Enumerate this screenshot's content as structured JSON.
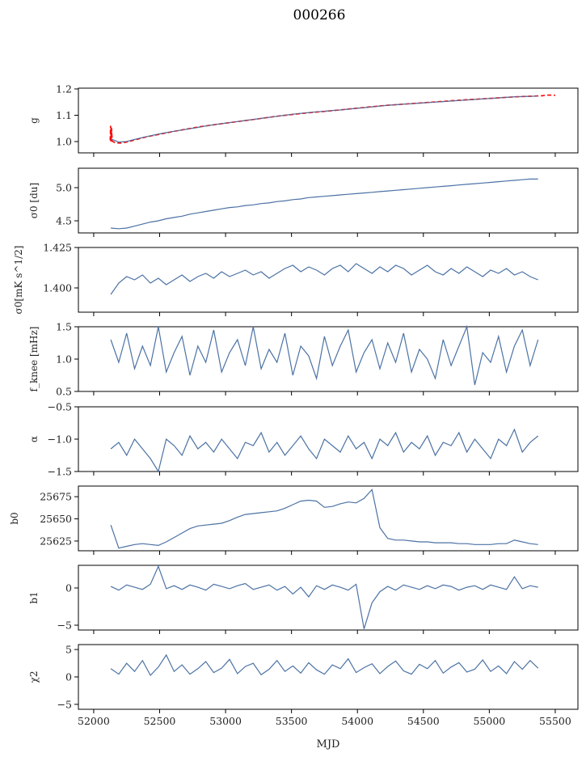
{
  "chart_data": {
    "type": "line",
    "title": "000266",
    "xlabel": "MJD",
    "xlim": [
      51884,
      55672
    ],
    "xticks": [
      "52000",
      "52500",
      "53000",
      "53500",
      "54000",
      "54500",
      "55000",
      "55500"
    ],
    "xtick_values": [
      52000,
      52500,
      53000,
      53500,
      54000,
      54500,
      55000,
      55500
    ],
    "line_color": "#4c72a4",
    "overlay_color": "#ff0000",
    "x": [
      52130,
      52190,
      52250,
      52310,
      52370,
      52430,
      52490,
      52550,
      52610,
      52670,
      52730,
      52790,
      52850,
      52910,
      52970,
      53030,
      53090,
      53150,
      53210,
      53270,
      53330,
      53390,
      53450,
      53510,
      53570,
      53630,
      53690,
      53750,
      53810,
      53870,
      53930,
      53990,
      54050,
      54110,
      54170,
      54230,
      54290,
      54350,
      54410,
      54470,
      54530,
      54590,
      54650,
      54710,
      54770,
      54830,
      54890,
      54950,
      55010,
      55070,
      55130,
      55190,
      55250,
      55310,
      55370
    ],
    "panels": [
      {
        "ylabel": "g",
        "ylim": [
          0.957,
          1.203
        ],
        "yticks": [
          "1.0",
          "1.1",
          "1.2"
        ],
        "ytick_values": [
          1.0,
          1.1,
          1.2
        ],
        "values": [
          1.01,
          0.998,
          1.0,
          1.008,
          1.015,
          1.022,
          1.028,
          1.034,
          1.039,
          1.044,
          1.049,
          1.054,
          1.059,
          1.064,
          1.068,
          1.072,
          1.076,
          1.08,
          1.084,
          1.088,
          1.092,
          1.096,
          1.1,
          1.104,
          1.107,
          1.11,
          1.113,
          1.115,
          1.118,
          1.12,
          1.123,
          1.126,
          1.129,
          1.132,
          1.135,
          1.138,
          1.14,
          1.142,
          1.144,
          1.146,
          1.148,
          1.15,
          1.152,
          1.154,
          1.156,
          1.158,
          1.16,
          1.162,
          1.164,
          1.166,
          1.168,
          1.17,
          1.171,
          1.172,
          1.173
        ],
        "overlay": {
          "x": [
            52125,
            52128,
            52130,
            52132,
            52134,
            52136,
            52140,
            52160,
            52200,
            52250,
            52400,
            52600,
            52800,
            53000,
            53200,
            53400,
            53600,
            53800,
            54000,
            54200,
            54400,
            54600,
            54800,
            55000,
            55200,
            55400,
            55450,
            55500
          ],
          "values": [
            1.005,
            1.06,
            1.0,
            1.055,
            1.0,
            1.05,
            1.002,
            0.996,
            0.994,
            0.998,
            1.018,
            1.038,
            1.056,
            1.07,
            1.083,
            1.097,
            1.108,
            1.117,
            1.127,
            1.137,
            1.144,
            1.151,
            1.158,
            1.164,
            1.17,
            1.174,
            1.177,
            1.176
          ]
        }
      },
      {
        "ylabel": "σ0 [du]",
        "ylim": [
          4.317,
          5.293
        ],
        "yticks": [
          "4.5",
          "5.0"
        ],
        "ytick_values": [
          4.5,
          5.0
        ],
        "values": [
          4.39,
          4.38,
          4.39,
          4.42,
          4.45,
          4.48,
          4.5,
          4.53,
          4.55,
          4.57,
          4.6,
          4.62,
          4.64,
          4.66,
          4.68,
          4.7,
          4.71,
          4.73,
          4.74,
          4.76,
          4.77,
          4.79,
          4.8,
          4.82,
          4.83,
          4.85,
          4.86,
          4.87,
          4.88,
          4.89,
          4.9,
          4.91,
          4.92,
          4.93,
          4.94,
          4.95,
          4.96,
          4.97,
          4.98,
          4.99,
          5.0,
          5.01,
          5.02,
          5.03,
          5.04,
          5.05,
          5.06,
          5.07,
          5.08,
          5.09,
          5.1,
          5.11,
          5.12,
          5.13,
          5.13
        ]
      },
      {
        "ylabel": "σ0[mK s^1/2]",
        "ylim": [
          1.385,
          1.425
        ],
        "yticks": [
          "1.400",
          "1.425"
        ],
        "ytick_values": [
          1.4,
          1.425
        ],
        "values": [
          1.396,
          1.403,
          1.407,
          1.405,
          1.408,
          1.403,
          1.406,
          1.402,
          1.405,
          1.408,
          1.404,
          1.407,
          1.409,
          1.406,
          1.41,
          1.407,
          1.409,
          1.411,
          1.408,
          1.41,
          1.406,
          1.409,
          1.412,
          1.414,
          1.41,
          1.413,
          1.411,
          1.408,
          1.412,
          1.414,
          1.41,
          1.415,
          1.412,
          1.409,
          1.413,
          1.41,
          1.414,
          1.412,
          1.408,
          1.411,
          1.414,
          1.41,
          1.408,
          1.412,
          1.409,
          1.413,
          1.41,
          1.407,
          1.411,
          1.409,
          1.412,
          1.408,
          1.41,
          1.407,
          1.405
        ]
      },
      {
        "ylabel": "f_knee [mHz]",
        "ylim": [
          0.5,
          1.5
        ],
        "yticks": [
          "0.5",
          "1.0",
          "1.5"
        ],
        "ytick_values": [
          0.5,
          1.0,
          1.5
        ],
        "values": [
          1.3,
          0.95,
          1.4,
          0.85,
          1.2,
          0.9,
          1.5,
          0.8,
          1.1,
          1.35,
          0.75,
          1.2,
          0.95,
          1.45,
          0.8,
          1.1,
          1.3,
          0.9,
          1.5,
          0.85,
          1.15,
          0.95,
          1.4,
          0.75,
          1.2,
          1.05,
          0.7,
          1.35,
          0.9,
          1.2,
          1.45,
          0.8,
          1.1,
          1.3,
          0.85,
          1.25,
          0.95,
          1.4,
          0.8,
          1.15,
          1.0,
          0.7,
          1.3,
          0.9,
          1.2,
          1.5,
          0.6,
          1.1,
          0.95,
          1.35,
          0.8,
          1.2,
          1.45,
          0.9,
          1.3
        ]
      },
      {
        "ylabel": "α",
        "ylim": [
          -1.5,
          -0.5
        ],
        "yticks": [
          "−1.5",
          "−1.0",
          "−0.5"
        ],
        "ytick_values": [
          -1.5,
          -1.0,
          -0.5
        ],
        "values": [
          -1.15,
          -1.05,
          -1.25,
          -1.0,
          -1.15,
          -1.3,
          -1.5,
          -1.0,
          -1.1,
          -1.25,
          -0.95,
          -1.15,
          -1.05,
          -1.2,
          -1.0,
          -1.15,
          -1.3,
          -1.05,
          -1.1,
          -0.9,
          -1.2,
          -1.05,
          -1.25,
          -1.1,
          -0.95,
          -1.15,
          -1.3,
          -1.0,
          -1.1,
          -1.2,
          -0.95,
          -1.15,
          -1.05,
          -1.3,
          -1.0,
          -1.1,
          -0.9,
          -1.2,
          -1.05,
          -1.15,
          -0.95,
          -1.25,
          -1.05,
          -1.1,
          -0.9,
          -1.2,
          -1.0,
          -1.15,
          -1.3,
          -1.0,
          -1.1,
          -0.85,
          -1.2,
          -1.05,
          -0.95
        ]
      },
      {
        "ylabel": "b0",
        "ylim": [
          25614,
          25687
        ],
        "yticks": [
          "25625",
          "25650",
          "25675"
        ],
        "ytick_values": [
          25625,
          25650,
          25675
        ],
        "values": [
          25643,
          25617,
          25619,
          25621,
          25622,
          25621,
          25620,
          25624,
          25629,
          25634,
          25639,
          25642,
          25643,
          25644,
          25645,
          25648,
          25652,
          25655,
          25656,
          25657,
          25658,
          25659,
          25662,
          25666,
          25670,
          25671,
          25670,
          25663,
          25664,
          25667,
          25669,
          25668,
          25673,
          25683,
          25640,
          25628,
          25626,
          25626,
          25625,
          25624,
          25624,
          25623,
          25623,
          25623,
          25622,
          25622,
          25621,
          25621,
          25621,
          25622,
          25622,
          25626,
          25624,
          25622,
          25621
        ]
      },
      {
        "ylabel": "b1",
        "ylim": [
          -5.65,
          3.04
        ],
        "yticks": [
          "−5",
          "0"
        ],
        "ytick_values": [
          -5,
          0
        ],
        "values": [
          0.2,
          -0.3,
          0.4,
          0.1,
          -0.2,
          0.5,
          2.9,
          -0.1,
          0.3,
          -0.2,
          0.4,
          0.1,
          -0.3,
          0.5,
          0.2,
          -0.1,
          0.3,
          0.6,
          -0.2,
          0.1,
          0.4,
          -0.3,
          0.2,
          -0.8,
          0.1,
          -1.2,
          0.3,
          -0.2,
          0.4,
          0.1,
          -0.3,
          0.5,
          -5.5,
          -2.0,
          -0.5,
          0.2,
          -0.3,
          0.4,
          0.1,
          -0.2,
          0.3,
          -0.1,
          0.4,
          0.2,
          -0.3,
          0.1,
          0.3,
          -0.2,
          0.4,
          0.1,
          -0.2,
          1.5,
          -0.1,
          0.3,
          0.1
        ]
      },
      {
        "ylabel": "χ2",
        "ylim": [
          -5.9,
          5.9
        ],
        "yticks": [
          "−5",
          "0",
          "5"
        ],
        "ytick_values": [
          -5,
          0,
          5
        ],
        "values": [
          1.5,
          0.5,
          2.5,
          1.0,
          3.0,
          0.3,
          1.8,
          4.0,
          1.0,
          2.2,
          0.5,
          1.5,
          2.8,
          0.8,
          1.6,
          3.2,
          0.6,
          1.9,
          2.5,
          0.4,
          1.4,
          3.0,
          1.0,
          2.0,
          0.7,
          2.6,
          1.3,
          0.5,
          2.2,
          1.5,
          3.3,
          0.8,
          1.7,
          2.4,
          0.6,
          1.9,
          2.9,
          1.1,
          0.5,
          2.3,
          1.5,
          3.0,
          0.7,
          1.8,
          2.6,
          0.9,
          1.4,
          3.1,
          1.0,
          2.0,
          0.6,
          2.8,
          1.4,
          3.0,
          1.6
        ]
      }
    ]
  }
}
